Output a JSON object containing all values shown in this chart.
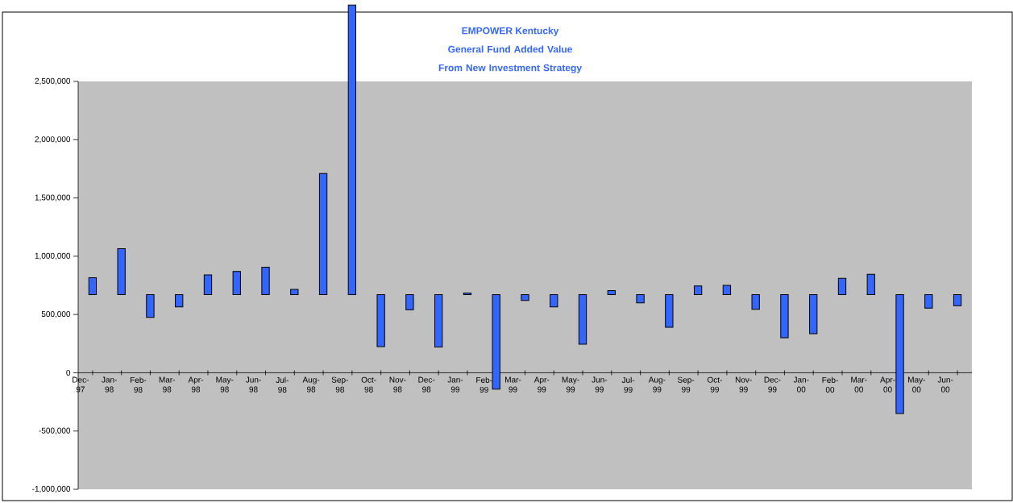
{
  "chart_data": {
    "type": "bar",
    "title": "EMPOWER Kentucky",
    "subtitle": "General Fund Added Value From New Investment Strategy",
    "categories": [
      "Dec-97",
      "Jan-98",
      "Feb-98",
      "Mar-98",
      "Apr-98",
      "May-98",
      "Jun-98",
      "Jul-98",
      "Aug-98",
      "Sep-98",
      "Oct-98",
      "Nov-98",
      "Dec-98",
      "Jan-99",
      "Feb-99",
      "Mar-99",
      "Apr-99",
      "May-99",
      "Jun-99",
      "Jul-99",
      "Aug-99",
      "Sep-99",
      "Oct-99",
      "Nov-99",
      "Dec-99",
      "Jan-00",
      "Feb-00",
      "Mar-00",
      "Apr-00",
      "May-00",
      "Jun-00"
    ],
    "values": [
      145000,
      395000,
      -195000,
      -105000,
      170000,
      200000,
      235000,
      45000,
      1040000,
      2485000,
      -445000,
      -130000,
      -450000,
      15000,
      -810000,
      -50000,
      -105000,
      -425000,
      35000,
      -70000,
      -280000,
      75000,
      80000,
      -125000,
      -370000,
      -335000,
      140000,
      175000,
      -1020000,
      -115000,
      -95000
    ],
    "base": [
      670000,
      670000,
      670000,
      670000,
      670000,
      670000,
      670000,
      670000,
      670000,
      670000,
      670000,
      670000,
      670000,
      670000,
      670000,
      670000,
      670000,
      670000,
      670000,
      670000,
      670000,
      670000,
      670000,
      670000,
      670000,
      670000,
      670000,
      670000,
      670000,
      670000,
      670000
    ],
    "color": "#3366ff",
    "ylim": [
      -1000000,
      2500000
    ],
    "yticks": [
      {
        "value": -1000000,
        "label": "-1,000,000"
      },
      {
        "value": -500000,
        "label": "-500,000"
      },
      {
        "value": 0,
        "label": "0"
      },
      {
        "value": 500000,
        "label": "500,000"
      },
      {
        "value": 1000000,
        "label": "1,000,000"
      },
      {
        "value": 1500000,
        "label": "1,500,000"
      },
      {
        "value": 2000000,
        "label": "2,000,000"
      },
      {
        "value": 2500000,
        "label": "2,500,000"
      }
    ]
  }
}
